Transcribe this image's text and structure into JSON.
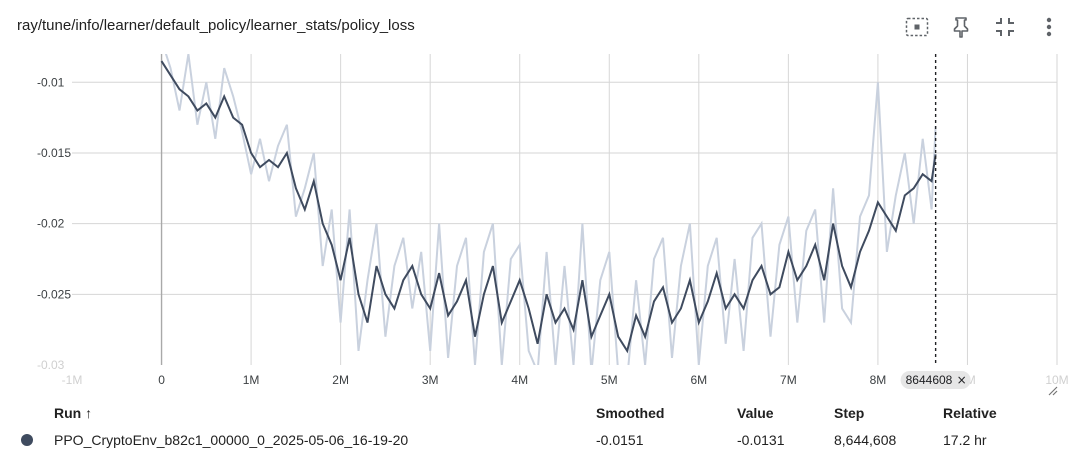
{
  "header": {
    "title": "ray/tune/info/learner/default_policy/learner_stats/policy_loss",
    "icons": [
      "fit-domain-icon",
      "pin-icon",
      "collapse-icon",
      "more-vert-icon"
    ]
  },
  "chart_data": {
    "type": "line",
    "title": "ray/tune/info/learner/default_policy/learner_stats/policy_loss",
    "xlabel": "",
    "ylabel": "",
    "xlim": [
      -1000000,
      10000000
    ],
    "ylim": [
      -0.03,
      -0.008
    ],
    "x_ticks": [
      0,
      1000000,
      2000000,
      3000000,
      4000000,
      5000000,
      6000000,
      7000000,
      8000000
    ],
    "x_tick_labels": [
      "0",
      "1M",
      "2M",
      "3M",
      "4M",
      "5M",
      "6M",
      "7M",
      "8M"
    ],
    "x_faded_labels": [
      "-1M",
      "9M",
      "10M"
    ],
    "y_ticks": [
      -0.01,
      -0.015,
      -0.02,
      -0.025
    ],
    "y_tick_labels": [
      "-0.01",
      "-0.015",
      "-0.02",
      "-0.025"
    ],
    "y_faded_label": "-0.03",
    "grid": true,
    "cursor_step": 8644608,
    "cursor_label": "8644608",
    "series": [
      {
        "name": "PPO_CryptoEnv_b82c1_00000_0_2025-05-06_16-19-20",
        "color": "#3f4b5f",
        "raw_color": "#c9d1de",
        "x": [
          0,
          100000,
          200000,
          300000,
          400000,
          500000,
          600000,
          700000,
          800000,
          900000,
          1000000,
          1100000,
          1200000,
          1300000,
          1400000,
          1500000,
          1600000,
          1700000,
          1800000,
          1900000,
          2000000,
          2100000,
          2200000,
          2300000,
          2400000,
          2500000,
          2600000,
          2700000,
          2800000,
          2900000,
          3000000,
          3100000,
          3200000,
          3300000,
          3400000,
          3500000,
          3600000,
          3700000,
          3800000,
          3900000,
          4000000,
          4100000,
          4200000,
          4300000,
          4400000,
          4500000,
          4600000,
          4700000,
          4800000,
          4900000,
          5000000,
          5100000,
          5200000,
          5300000,
          5400000,
          5500000,
          5600000,
          5700000,
          5800000,
          5900000,
          6000000,
          6100000,
          6200000,
          6300000,
          6400000,
          6500000,
          6600000,
          6700000,
          6800000,
          6900000,
          7000000,
          7100000,
          7200000,
          7300000,
          7400000,
          7500000,
          7600000,
          7700000,
          7800000,
          7900000,
          8000000,
          8100000,
          8200000,
          8300000,
          8400000,
          8500000,
          8600000,
          8644608
        ],
        "smoothed": [
          -0.0085,
          -0.0095,
          -0.0105,
          -0.011,
          -0.012,
          -0.0115,
          -0.0125,
          -0.011,
          -0.0125,
          -0.013,
          -0.015,
          -0.016,
          -0.0155,
          -0.016,
          -0.015,
          -0.0175,
          -0.019,
          -0.017,
          -0.02,
          -0.0215,
          -0.024,
          -0.021,
          -0.025,
          -0.027,
          -0.023,
          -0.025,
          -0.026,
          -0.024,
          -0.023,
          -0.025,
          -0.026,
          -0.0235,
          -0.0265,
          -0.0255,
          -0.024,
          -0.028,
          -0.025,
          -0.023,
          -0.027,
          -0.0255,
          -0.024,
          -0.026,
          -0.0285,
          -0.025,
          -0.027,
          -0.026,
          -0.0275,
          -0.024,
          -0.028,
          -0.0265,
          -0.025,
          -0.028,
          -0.029,
          -0.0265,
          -0.028,
          -0.0255,
          -0.0245,
          -0.027,
          -0.026,
          -0.024,
          -0.027,
          -0.0255,
          -0.0235,
          -0.026,
          -0.025,
          -0.026,
          -0.024,
          -0.023,
          -0.025,
          -0.0245,
          -0.022,
          -0.024,
          -0.023,
          -0.0215,
          -0.024,
          -0.02,
          -0.023,
          -0.0245,
          -0.022,
          -0.0205,
          -0.0185,
          -0.0195,
          -0.0205,
          -0.018,
          -0.0175,
          -0.0165,
          -0.017,
          -0.0151
        ],
        "raw": [
          -0.007,
          -0.009,
          -0.012,
          -0.008,
          -0.013,
          -0.01,
          -0.014,
          -0.009,
          -0.011,
          -0.0135,
          -0.0165,
          -0.014,
          -0.017,
          -0.0145,
          -0.013,
          -0.0195,
          -0.0175,
          -0.015,
          -0.023,
          -0.019,
          -0.027,
          -0.019,
          -0.029,
          -0.024,
          -0.02,
          -0.028,
          -0.023,
          -0.021,
          -0.026,
          -0.022,
          -0.029,
          -0.02,
          -0.0295,
          -0.023,
          -0.021,
          -0.03,
          -0.022,
          -0.02,
          -0.03,
          -0.0225,
          -0.0215,
          -0.029,
          -0.0305,
          -0.022,
          -0.03,
          -0.023,
          -0.03,
          -0.02,
          -0.0305,
          -0.024,
          -0.022,
          -0.0305,
          -0.031,
          -0.024,
          -0.03,
          -0.0225,
          -0.021,
          -0.0295,
          -0.023,
          -0.02,
          -0.03,
          -0.023,
          -0.021,
          -0.0285,
          -0.0225,
          -0.029,
          -0.021,
          -0.02,
          -0.028,
          -0.0215,
          -0.0195,
          -0.027,
          -0.0205,
          -0.019,
          -0.027,
          -0.0175,
          -0.026,
          -0.027,
          -0.0195,
          -0.018,
          -0.01,
          -0.022,
          -0.018,
          -0.015,
          -0.02,
          -0.014,
          -0.019,
          -0.0131
        ]
      }
    ]
  },
  "table": {
    "headers": {
      "run": "Run ↑",
      "smoothed": "Smoothed",
      "value": "Value",
      "step": "Step",
      "relative": "Relative"
    },
    "rows": [
      {
        "run": "PPO_CryptoEnv_b82c1_00000_0_2025-05-06_16-19-20",
        "smoothed": "-0.0151",
        "value": "-0.0131",
        "step": "8,644,608",
        "relative": "17.2 hr",
        "color": "#3f4b5f"
      }
    ]
  }
}
